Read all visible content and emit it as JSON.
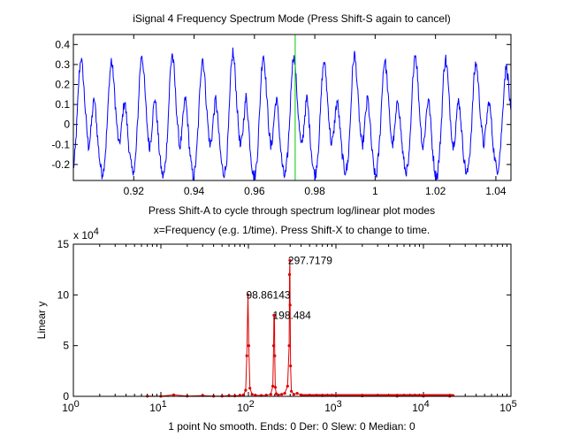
{
  "window": {
    "title": "iSignal 4 Frequency Spectrum Mode (Press Shift-S again to cancel)"
  },
  "chart_data": [
    {
      "type": "line",
      "name": "signal",
      "title": "iSignal 4 Frequency Spectrum Mode (Press Shift-S again to cancel)",
      "xlabel": "Press Shift-A to cycle through spectrum log/linear plot modes",
      "ylabel": "",
      "xlim": [
        0.9,
        1.045
      ],
      "ylim": [
        -0.28,
        0.45
      ],
      "xticks": [
        0.92,
        0.94,
        0.96,
        0.98,
        1,
        1.02,
        1.04
      ],
      "xtick_labels": [
        "0.92",
        "0.94",
        "0.96",
        "0.98",
        "1",
        "1.02",
        "1.04"
      ],
      "yticks": [
        -0.2,
        -0.1,
        0,
        0.1,
        0.2,
        0.3,
        0.4
      ],
      "ytick_labels": [
        "-0.2",
        "-0.1",
        "0",
        "0.1",
        "0.2",
        "0.3",
        "0.4"
      ],
      "cursor_x": 0.9735,
      "series": [
        {
          "name": "signal",
          "color": "#0000ff",
          "period": 0.010065,
          "base_waveform": [
            -0.24,
            -0.14,
            0.04,
            0.26,
            0.36,
            0.28,
            0.12,
            -0.02,
            -0.12,
            -0.06,
            0.06,
            0.14,
            0.04,
            -0.1,
            -0.2,
            -0.26
          ]
        }
      ],
      "cursor_color": "#00cc00"
    },
    {
      "type": "line",
      "name": "spectrum",
      "title": "x=Frequency (e.g. 1/time). Press Shift-X to change to time.",
      "xlabel": "1 point No smooth. Ends: 0     Der: 0     Slew: 0     Median: 0",
      "ylabel": "Linear y",
      "y_exponent_label": "x 10",
      "y_exponent_power": "4",
      "xscale": "log",
      "xlim": [
        1,
        100000
      ],
      "ylim": [
        0,
        150000
      ],
      "xtick_powers": [
        "0",
        "1",
        "2",
        "3",
        "4",
        "5"
      ],
      "xtick_base": "10",
      "yticks": [
        0,
        50000,
        100000,
        150000
      ],
      "ytick_labels": [
        "0",
        "5",
        "10",
        "15"
      ],
      "series": [
        {
          "name": "power spectrum",
          "color": "#dd0000",
          "x": [
            7,
            10,
            14,
            20,
            30,
            40,
            50,
            60,
            70,
            80,
            88,
            93,
            96,
            98.86,
            101,
            104,
            110,
            120,
            140,
            160,
            180,
            190,
            194,
            196,
            198.48,
            200,
            203,
            208,
            220,
            240,
            260,
            280,
            292,
            295,
            297.72,
            300,
            303,
            310,
            330,
            360,
            400,
            500,
            700,
            1000,
            2000,
            5000,
            10000,
            20000
          ],
          "y": [
            200,
            100,
            1500,
            300,
            800,
            200,
            300,
            600,
            400,
            900,
            1500,
            6000,
            40000,
            100000,
            50000,
            8000,
            2000,
            1200,
            900,
            1200,
            2000,
            10000,
            50000,
            80000,
            80000,
            40000,
            9000,
            2500,
            1500,
            2000,
            3000,
            10000,
            50000,
            120000,
            134000,
            90000,
            30000,
            5000,
            2000,
            3000,
            1500,
            1000,
            700,
            600,
            400,
            300,
            200,
            200
          ]
        }
      ],
      "annotations": [
        {
          "text": "98.86143",
          "x": 98.86,
          "y": 100000
        },
        {
          "text": "198.484",
          "x": 198.48,
          "y": 80000
        },
        {
          "text": "297.7179",
          "x": 297.72,
          "y": 134000
        }
      ]
    }
  ]
}
